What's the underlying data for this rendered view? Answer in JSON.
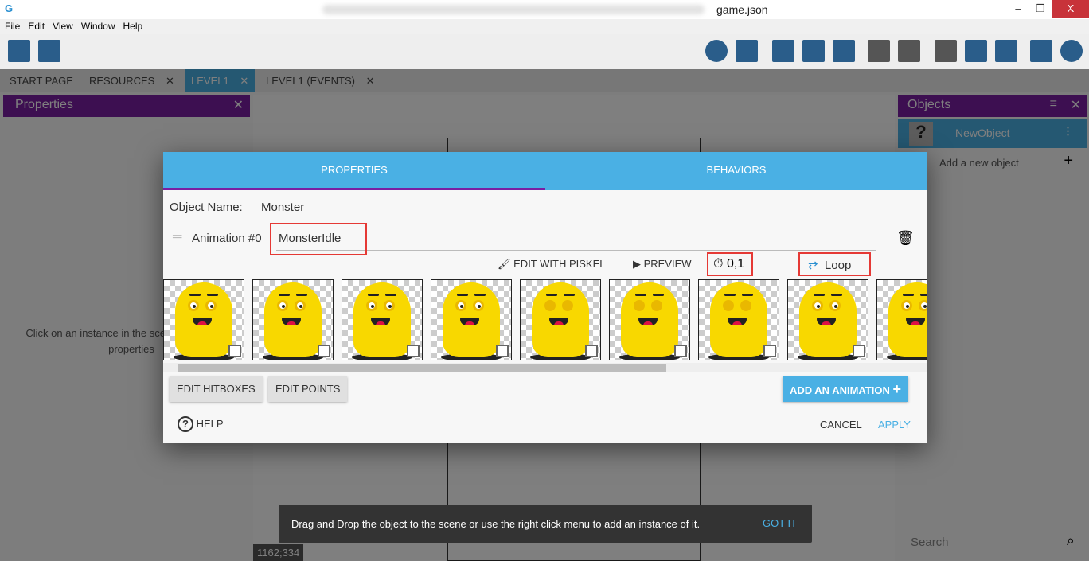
{
  "window": {
    "title": "game.json",
    "minimize": "–",
    "maximize": "❐",
    "close": "X"
  },
  "menu": [
    "File",
    "Edit",
    "View",
    "Window",
    "Help"
  ],
  "tabs": [
    {
      "label": "START PAGE"
    },
    {
      "label": "RESOURCES",
      "close": "✕"
    },
    {
      "label": "LEVEL1",
      "close": "✕"
    },
    {
      "label": "LEVEL1 (EVENTS)",
      "close": "✕"
    }
  ],
  "left_panel": {
    "title": "Properties",
    "close": "✕",
    "hint": "Click on an instance in the scene to display its properties"
  },
  "right_panel": {
    "title": "Objects",
    "object": "NewObject",
    "add": "Add a new object",
    "search_placeholder": "Search"
  },
  "coords": "1162;334",
  "dialog": {
    "tabs": [
      "PROPERTIES",
      "BEHAVIORS"
    ],
    "object_name_label": "Object Name:",
    "object_name": "Monster",
    "animation_label": "Animation #0",
    "animation_name": "MonsterIdle",
    "edit_piskel": "EDIT WITH PISKEL",
    "preview": "PREVIEW",
    "timer": "0,1",
    "loop": "Loop",
    "frames": [
      "open",
      "open",
      "open",
      "open",
      "half",
      "closed",
      "half",
      "open",
      "open"
    ],
    "edit_hitboxes": "EDIT HITBOXES",
    "edit_points": "EDIT POINTS",
    "add_animation": "ADD AN ANIMATION",
    "help": "HELP",
    "cancel": "CANCEL",
    "apply": "APPLY",
    "colors": {
      "tab_bg": "#4ab0e4",
      "tab_indicator": "#7b1fa2",
      "highlight": "#e53935"
    }
  },
  "snackbar": {
    "message": "Drag and Drop the object to the scene or use the right click menu to add an instance of it.",
    "action": "GOT IT"
  }
}
